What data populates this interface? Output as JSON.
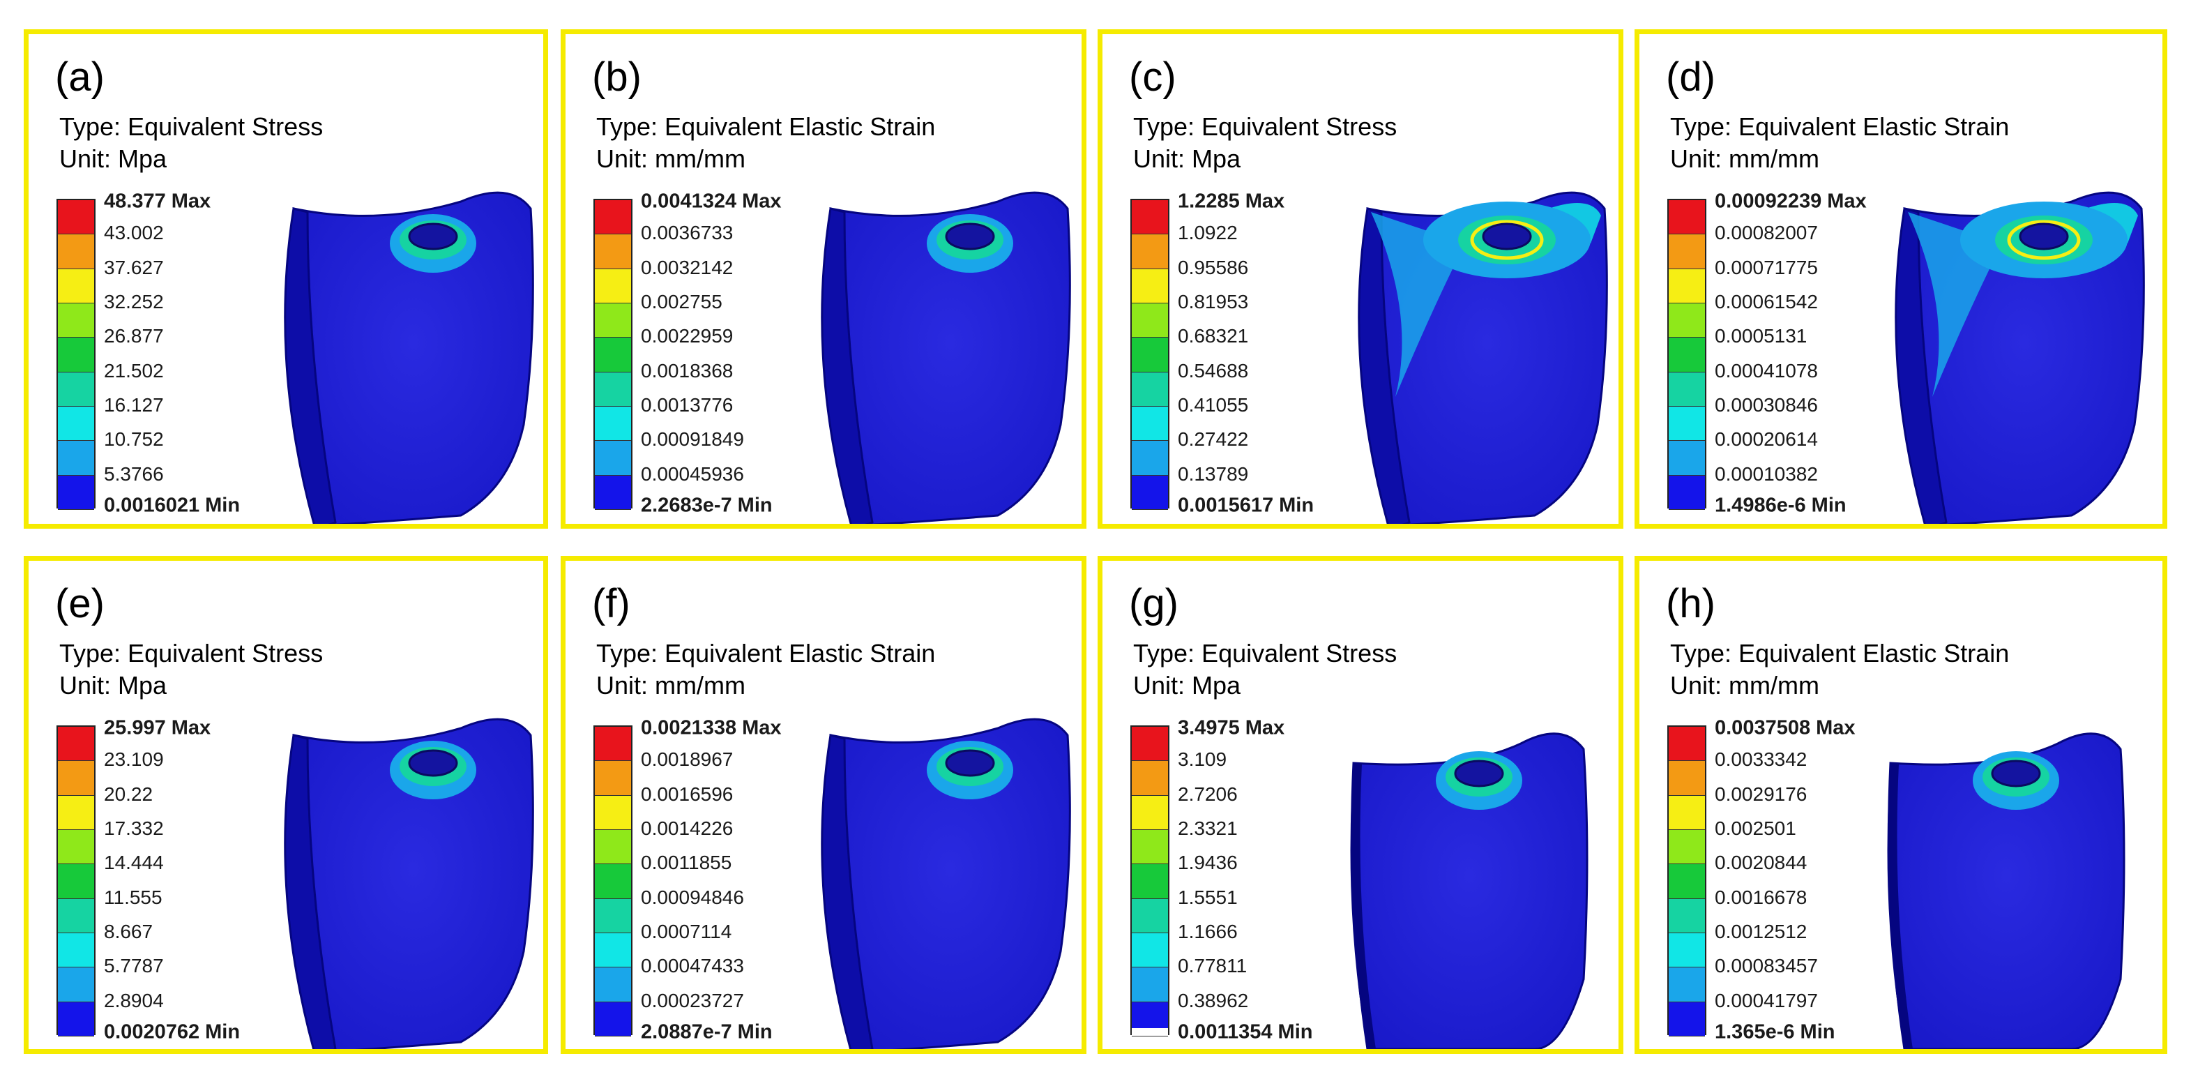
{
  "colors": {
    "frame": "#f5eb00",
    "legend_bands": [
      "#e8141c",
      "#f39a14",
      "#f6ee14",
      "#8fe81a",
      "#17c93a",
      "#16d3a2",
      "#11e6e6",
      "#1aa6ea",
      "#1414ea"
    ],
    "model_body": "#1818c8",
    "model_edge": "#050580"
  },
  "panels": [
    {
      "letter": "(a)",
      "type": "Type: Equivalent Stress",
      "unit": "Unit: Mpa",
      "variant": "small-hole",
      "extra_min_band": false,
      "legend": [
        "48.377 Max",
        "43.002",
        "37.627",
        "32.252",
        "26.877",
        "21.502",
        "16.127",
        "10.752",
        "5.3766",
        "0.0016021 Min"
      ]
    },
    {
      "letter": "(b)",
      "type": "Type: Equivalent Elastic Strain",
      "unit": "Unit: mm/mm",
      "variant": "small-hole",
      "extra_min_band": false,
      "legend": [
        "0.0041324 Max",
        "0.0036733",
        "0.0032142",
        "0.002755",
        "0.0022959",
        "0.0018368",
        "0.0013776",
        "0.00091849",
        "0.00045936",
        "2.2683e-7 Min"
      ]
    },
    {
      "letter": "(c)",
      "type": "Type: Equivalent Stress",
      "unit": "Unit: Mpa",
      "variant": "wide-stress",
      "extra_min_band": false,
      "legend": [
        "1.2285 Max",
        "1.0922",
        "0.95586",
        "0.81953",
        "0.68321",
        "0.54688",
        "0.41055",
        "0.27422",
        "0.13789",
        "0.0015617 Min"
      ]
    },
    {
      "letter": "(d)",
      "type": "Type: Equivalent Elastic Strain",
      "unit": "Unit: mm/mm",
      "variant": "wide-stress",
      "extra_min_band": false,
      "legend": [
        "0.00092239 Max",
        "0.00082007",
        "0.00071775",
        "0.00061542",
        "0.0005131",
        "0.00041078",
        "0.00030846",
        "0.00020614",
        "0.00010382",
        "1.4986e-6 Min"
      ]
    },
    {
      "letter": "(e)",
      "type": "Type: Equivalent Stress",
      "unit": "Unit: Mpa",
      "variant": "small-hole",
      "extra_min_band": false,
      "legend": [
        "25.997 Max",
        "23.109",
        "20.22",
        "17.332",
        "14.444",
        "11.555",
        "8.667",
        "5.7787",
        "2.8904",
        "0.0020762 Min"
      ]
    },
    {
      "letter": "(f)",
      "type": "Type: Equivalent Elastic Strain",
      "unit": "Unit: mm/mm",
      "variant": "small-hole",
      "extra_min_band": false,
      "legend": [
        "0.0021338 Max",
        "0.0018967",
        "0.0016596",
        "0.0014226",
        "0.0011855",
        "0.00094846",
        "0.0007114",
        "0.00047433",
        "0.00023727",
        "2.0887e-7 Min"
      ]
    },
    {
      "letter": "(g)",
      "type": "Type: Equivalent Stress",
      "unit": "Unit: Mpa",
      "variant": "open-side",
      "extra_min_band": true,
      "legend": [
        "3.4975 Max",
        "3.109",
        "2.7206",
        "2.3321",
        "1.9436",
        "1.5551",
        "1.1666",
        "0.77811",
        "0.38962",
        "0.0011354 Min"
      ]
    },
    {
      "letter": "(h)",
      "type": "Type: Equivalent Elastic Strain",
      "unit": "Unit: mm/mm",
      "variant": "open-side",
      "extra_min_band": false,
      "legend": [
        "0.0037508 Max",
        "0.0033342",
        "0.0029176",
        "0.002501",
        "0.0020844",
        "0.0016678",
        "0.0012512",
        "0.00083457",
        "0.00041797",
        "1.365e-6 Min"
      ]
    }
  ]
}
